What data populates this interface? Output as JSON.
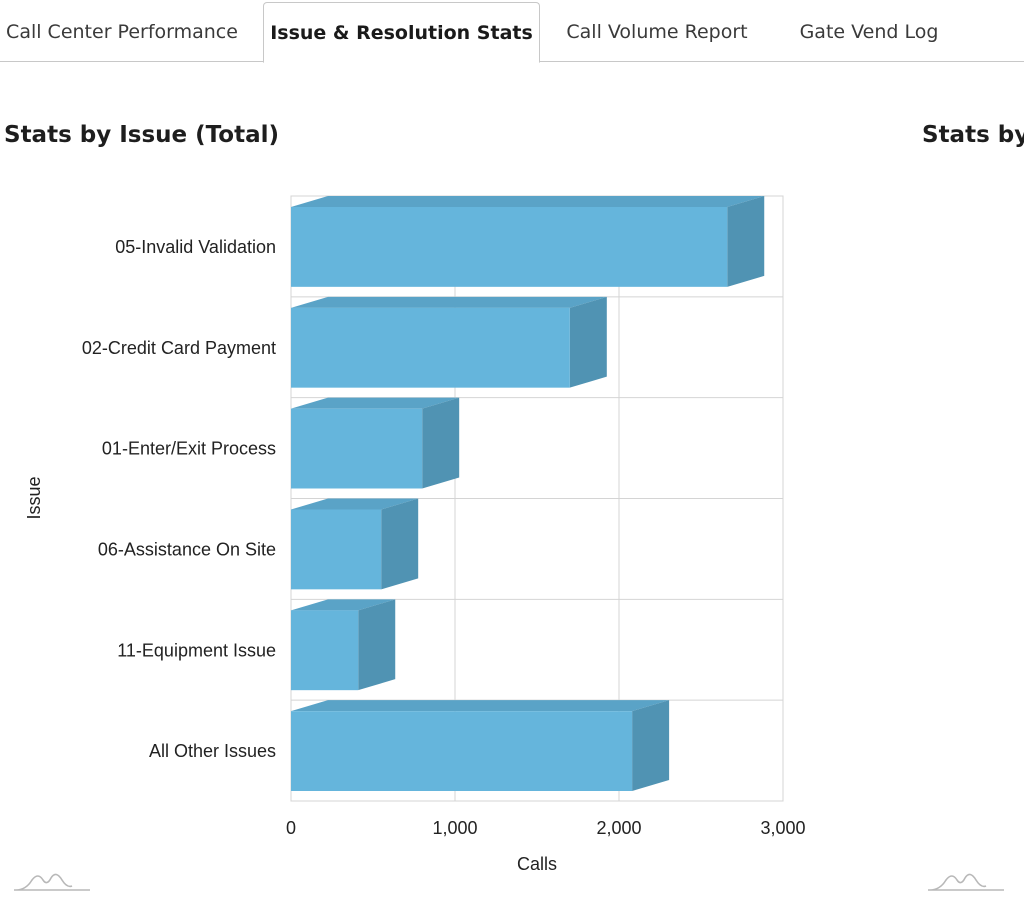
{
  "tabs": [
    {
      "label": "Call Center Performance",
      "active": false
    },
    {
      "label": "Issue & Resolution Stats",
      "active": true
    },
    {
      "label": "Call Volume Report",
      "active": false
    },
    {
      "label": "Gate Vend Log",
      "active": false
    }
  ],
  "panels": {
    "left_title": "Stats by Issue (Total)",
    "right_title": "Stats by I"
  },
  "colors": {
    "bar_front": "#65b5dc",
    "bar_top": "#5aa3c7",
    "bar_side": "#5093b3",
    "grid": "#d4d4d4",
    "logo": "#b8b8b8"
  },
  "chart_data": {
    "type": "bar",
    "orientation": "horizontal",
    "style": "3d",
    "categories": [
      "05-Invalid Validation",
      "02-Credit Card Payment",
      "01-Enter/Exit Process",
      "06-Assistance On Site",
      "11-Equipment Issue",
      "All Other Issues"
    ],
    "values": [
      2660,
      1700,
      800,
      550,
      410,
      2080
    ],
    "xlabel": "Calls",
    "ylabel": "Issue",
    "xlim": [
      0,
      3000
    ],
    "x_ticks": [
      "0",
      "1,000",
      "2,000",
      "3,000"
    ],
    "grid": true
  }
}
